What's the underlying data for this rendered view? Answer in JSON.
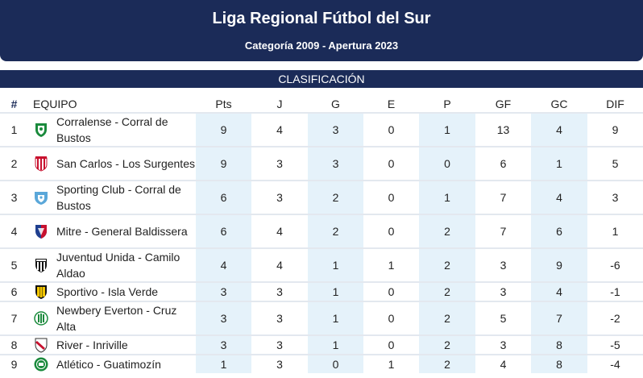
{
  "header": {
    "title": "Liga Regional Fútbol del Sur",
    "subtitle": "Categoría 2009 - Apertura 2023"
  },
  "section_title": "CLASIFICACIÓN",
  "columns": [
    "#",
    "EQUIPO",
    "Pts",
    "J",
    "G",
    "E",
    "P",
    "GF",
    "GC",
    "DIF"
  ],
  "rows": [
    {
      "pos": "1",
      "team": "Corralense - Corral de Bustos",
      "crest": "crest-green-white",
      "pts": "9",
      "j": "4",
      "g": "3",
      "e": "0",
      "p": "1",
      "gf": "13",
      "gc": "4",
      "dif": "9"
    },
    {
      "pos": "2",
      "team": "San Carlos - Los Surgentes",
      "crest": "crest-red-white-stripes",
      "pts": "9",
      "j": "3",
      "g": "3",
      "e": "0",
      "p": "0",
      "gf": "6",
      "gc": "1",
      "dif": "5"
    },
    {
      "pos": "3",
      "team": "Sporting Club - Corral de Bustos",
      "crest": "crest-light-blue",
      "pts": "6",
      "j": "3",
      "g": "2",
      "e": "0",
      "p": "1",
      "gf": "7",
      "gc": "4",
      "dif": "3"
    },
    {
      "pos": "4",
      "team": "Mitre - General Baldissera",
      "crest": "crest-blue-red",
      "pts": "6",
      "j": "4",
      "g": "2",
      "e": "0",
      "p": "2",
      "gf": "7",
      "gc": "6",
      "dif": "1"
    },
    {
      "pos": "5",
      "team": "Juventud Unida - Camilo Aldao",
      "crest": "crest-black-white-stripes",
      "pts": "4",
      "j": "4",
      "g": "1",
      "e": "1",
      "p": "2",
      "gf": "3",
      "gc": "9",
      "dif": "-6"
    },
    {
      "pos": "6",
      "team": "Sportivo - Isla Verde",
      "crest": "crest-yellow-black",
      "pts": "3",
      "j": "3",
      "g": "1",
      "e": "0",
      "p": "2",
      "gf": "3",
      "gc": "4",
      "dif": "-1"
    },
    {
      "pos": "7",
      "team": "Newbery Everton - Cruz Alta",
      "crest": "crest-green-white-stripes",
      "pts": "3",
      "j": "3",
      "g": "1",
      "e": "0",
      "p": "2",
      "gf": "5",
      "gc": "7",
      "dif": "-2"
    },
    {
      "pos": "8",
      "team": "River - Inriville",
      "crest": "crest-white-red-band",
      "pts": "3",
      "j": "3",
      "g": "1",
      "e": "0",
      "p": "2",
      "gf": "3",
      "gc": "8",
      "dif": "-5"
    },
    {
      "pos": "9",
      "team": "Atlético - Guatimozín",
      "crest": "crest-green-badge",
      "pts": "1",
      "j": "3",
      "g": "0",
      "e": "1",
      "p": "2",
      "gf": "4",
      "gc": "8",
      "dif": "-4"
    }
  ],
  "colors": {
    "navy": "#1b2b58",
    "highlight": "#e5f2fa",
    "rule": "#e3e8ef"
  }
}
